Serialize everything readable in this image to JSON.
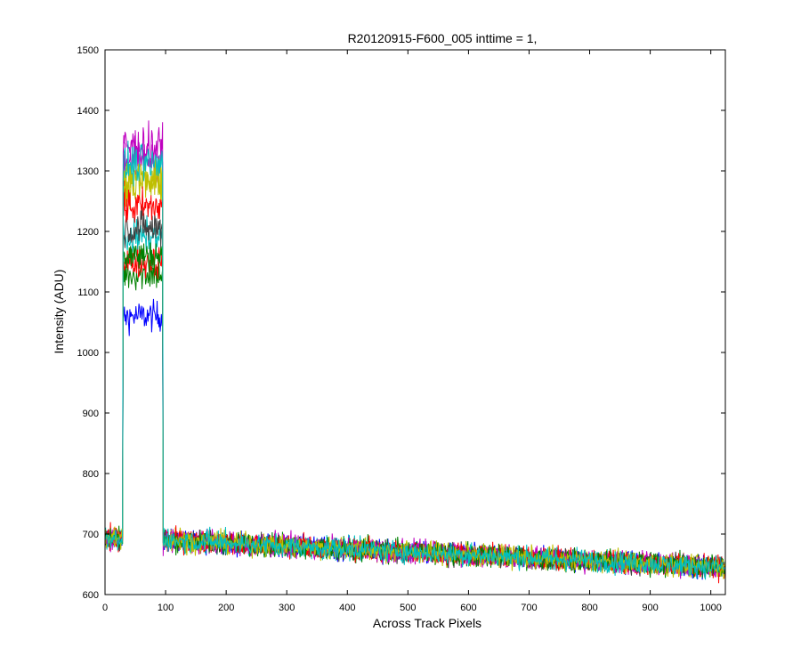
{
  "chart_data": {
    "type": "line",
    "title": "R20120915-F600_005 inttime = 1,",
    "xlabel": "Across Track Pixels",
    "ylabel": "Intensity (ADU)",
    "xlim": [
      0,
      1024
    ],
    "ylim": [
      600,
      1500
    ],
    "xticks": [
      0,
      100,
      200,
      300,
      400,
      500,
      600,
      700,
      800,
      900,
      1000
    ],
    "yticks": [
      600,
      700,
      800,
      900,
      1000,
      1100,
      1200,
      1300,
      1400,
      1500
    ],
    "grid": false,
    "legend": "none",
    "peak_region": [
      30,
      95
    ],
    "baseline": {
      "start": 695,
      "end": 645,
      "noise": 12
    },
    "series": [
      {
        "color": "#0000ff",
        "peak_level": 1060
      },
      {
        "color": "#008000",
        "peak_level": 1130
      },
      {
        "color": "#ff0000",
        "peak_level": 1150
      },
      {
        "color": "#00bfbf",
        "peak_level": 1190
      },
      {
        "color": "#bf00bf",
        "peak_level": 1320
      },
      {
        "color": "#bfbf00",
        "peak_level": 1280
      },
      {
        "color": "#404040",
        "peak_level": 1205
      },
      {
        "color": "#ff0000",
        "peak_level": 1240
      },
      {
        "color": "#bf00bf",
        "peak_level": 1340
      },
      {
        "color": "#008000",
        "peak_level": 1160
      },
      {
        "color": "#bfbf00",
        "peak_level": 1290
      },
      {
        "color": "#00bfbf",
        "peak_level": 1310
      }
    ]
  }
}
